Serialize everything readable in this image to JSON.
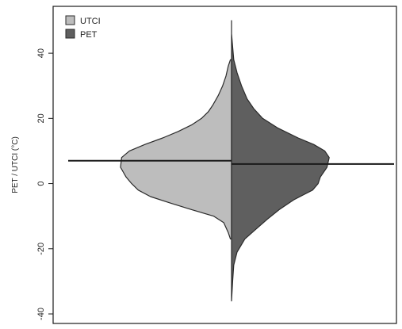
{
  "chart_data": {
    "type": "violin",
    "subtype": "split-violin",
    "ylabel": "PET / UTCI (°C)",
    "ylim": [
      -40,
      50
    ],
    "yticks": [
      -40,
      -20,
      0,
      20,
      40
    ],
    "grid": false,
    "legend_position": "top-left",
    "series": [
      {
        "name": "UTCI",
        "side": "left",
        "color": "#bdbdbd",
        "median": 7,
        "density": [
          [
            -17,
            0.01
          ],
          [
            -15,
            0.03
          ],
          [
            -12,
            0.07
          ],
          [
            -10,
            0.16
          ],
          [
            -8,
            0.36
          ],
          [
            -6,
            0.55
          ],
          [
            -4,
            0.73
          ],
          [
            -2,
            0.84
          ],
          [
            0,
            0.9
          ],
          [
            2,
            0.95
          ],
          [
            5,
            1.0
          ],
          [
            8,
            0.99
          ],
          [
            10,
            0.92
          ],
          [
            12,
            0.78
          ],
          [
            14,
            0.62
          ],
          [
            16,
            0.48
          ],
          [
            18,
            0.36
          ],
          [
            20,
            0.27
          ],
          [
            22,
            0.21
          ],
          [
            24,
            0.17
          ],
          [
            27,
            0.12
          ],
          [
            30,
            0.08
          ],
          [
            33,
            0.05
          ],
          [
            36,
            0.03
          ],
          [
            38,
            0.01
          ]
        ]
      },
      {
        "name": "PET",
        "side": "right",
        "color": "#5f5f5f",
        "median": 6,
        "density": [
          [
            -36,
            0.0
          ],
          [
            -30,
            0.01
          ],
          [
            -25,
            0.02
          ],
          [
            -21,
            0.05
          ],
          [
            -17,
            0.12
          ],
          [
            -14,
            0.22
          ],
          [
            -11,
            0.32
          ],
          [
            -8,
            0.43
          ],
          [
            -5,
            0.56
          ],
          [
            -2,
            0.73
          ],
          [
            0,
            0.78
          ],
          [
            2,
            0.8
          ],
          [
            5,
            0.86
          ],
          [
            8,
            0.88
          ],
          [
            10,
            0.84
          ],
          [
            12,
            0.74
          ],
          [
            14,
            0.6
          ],
          [
            17,
            0.42
          ],
          [
            20,
            0.28
          ],
          [
            23,
            0.2
          ],
          [
            26,
            0.14
          ],
          [
            30,
            0.09
          ],
          [
            34,
            0.05
          ],
          [
            38,
            0.02
          ],
          [
            42,
            0.01
          ],
          [
            46,
            0.0
          ],
          [
            50,
            0.0
          ]
        ]
      }
    ]
  }
}
